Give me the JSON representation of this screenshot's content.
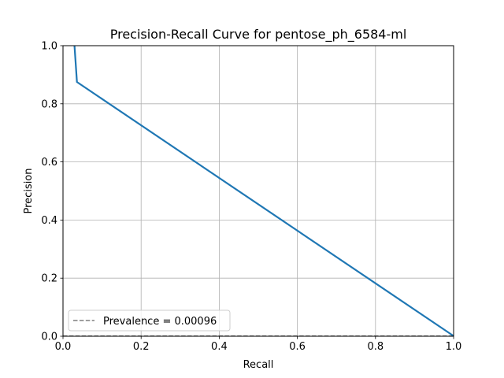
{
  "chart_data": {
    "type": "line",
    "title": "Precision-Recall Curve for pentose_ph_6584-ml",
    "xlabel": "Recall",
    "ylabel": "Precision",
    "xlim": [
      0.0,
      1.0
    ],
    "ylim": [
      0.0,
      1.0
    ],
    "x_ticks": [
      "0.0",
      "0.2",
      "0.4",
      "0.6",
      "0.8",
      "1.0"
    ],
    "y_ticks": [
      "0.0",
      "0.2",
      "0.4",
      "0.6",
      "0.8",
      "1.0"
    ],
    "grid": true,
    "legend_position": "lower-left",
    "series": [
      {
        "color": "#1f77b4",
        "style": "solid",
        "x": [
          0.0294,
          0.0357,
          1.0
        ],
        "y": [
          1.0,
          0.875,
          0.00096
        ]
      },
      {
        "name": "Prevalence = 0.00096",
        "color": "#7f7f7f",
        "style": "dashed",
        "x": [
          0.0,
          1.0
        ],
        "y": [
          0.00096,
          0.00096
        ]
      }
    ]
  }
}
